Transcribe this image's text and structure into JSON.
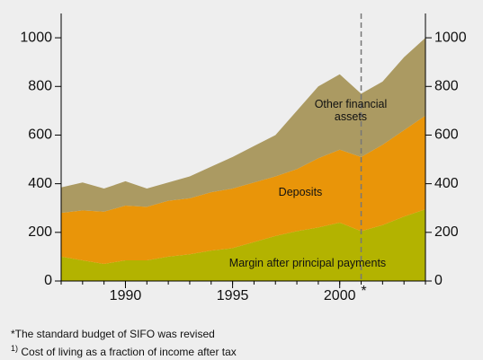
{
  "chart_data": {
    "type": "stacked_area",
    "x": [
      1987,
      1988,
      1989,
      1990,
      1991,
      1992,
      1993,
      1994,
      1995,
      1996,
      1997,
      1998,
      1999,
      2000,
      2001,
      2002,
      2003,
      2004
    ],
    "series": [
      {
        "name": "Margin after principal payments",
        "color": "#b3b300",
        "values": [
          100,
          85,
          70,
          85,
          85,
          100,
          110,
          125,
          135,
          160,
          185,
          205,
          220,
          240,
          205,
          230,
          265,
          295
        ]
      },
      {
        "name": "Deposits",
        "color": "#e99509",
        "values": [
          180,
          205,
          215,
          225,
          220,
          230,
          230,
          240,
          245,
          245,
          245,
          255,
          285,
          300,
          305,
          330,
          355,
          385
        ]
      },
      {
        "name": "Other financial assets",
        "color": "#ab9a62",
        "values": [
          105,
          115,
          95,
          100,
          75,
          75,
          90,
          105,
          130,
          150,
          170,
          240,
          295,
          310,
          260,
          260,
          300,
          320
        ]
      }
    ],
    "xlim": [
      1987,
      2004
    ],
    "xticks": [
      1990,
      1995,
      2000
    ],
    "ylim": [
      0,
      1100
    ],
    "yticks": [
      0,
      200,
      400,
      600,
      800,
      1000
    ],
    "y2lim": [
      0,
      1100
    ],
    "y2ticks": [
      0,
      200,
      400,
      600,
      800,
      1000
    ],
    "marker_x": 2001,
    "marker_label": "*",
    "footnotes": [
      {
        "text": "*The standard budget of SIFO was revised"
      },
      {
        "marker": "1)",
        "text": " Cost of living as a fraction of income after tax"
      }
    ]
  }
}
